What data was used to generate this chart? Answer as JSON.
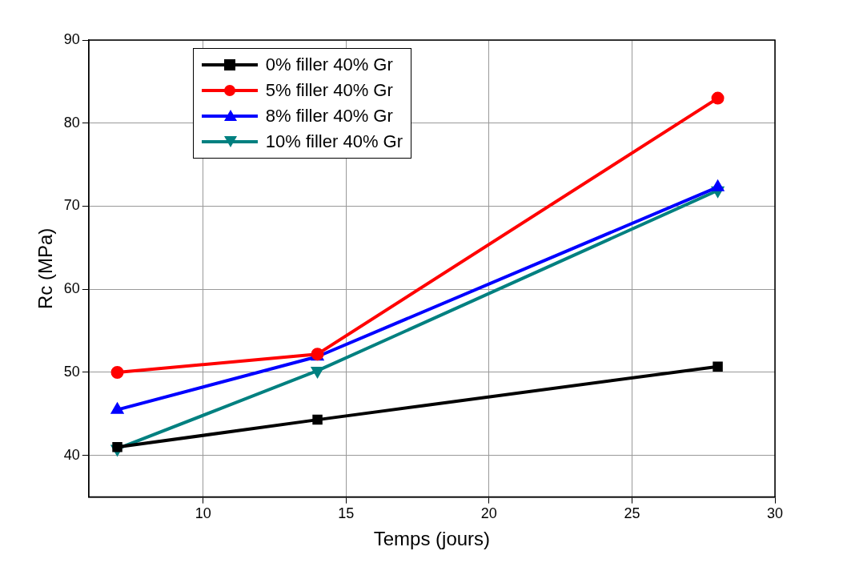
{
  "chart_data": {
    "type": "line",
    "xlabel": "Temps (jours)",
    "ylabel": "Rc (MPa)",
    "x": [
      7,
      14,
      28
    ],
    "series": [
      {
        "name": "0% filler 40% Gr",
        "color": "#000000",
        "marker": "square",
        "values": [
          41.0,
          44.3,
          50.7
        ]
      },
      {
        "name": "5% filler 40% Gr",
        "color": "#ff0000",
        "marker": "circle",
        "values": [
          50.0,
          52.2,
          83.0
        ]
      },
      {
        "name": "8% filler 40% Gr",
        "color": "#0000ff",
        "marker": "triangle",
        "values": [
          45.5,
          51.9,
          72.3
        ]
      },
      {
        "name": "10% filler 40% Gr",
        "color": "#008080",
        "marker": "triangle-down",
        "values": [
          40.8,
          50.2,
          71.9
        ]
      }
    ],
    "xlim": [
      6,
      30
    ],
    "xticks": [
      10,
      15,
      20,
      25,
      30
    ],
    "ylim": [
      35,
      90
    ],
    "yticks": [
      40,
      50,
      60,
      70,
      80,
      90
    ],
    "grid": true,
    "legend": "top left",
    "line_style": "solid"
  }
}
